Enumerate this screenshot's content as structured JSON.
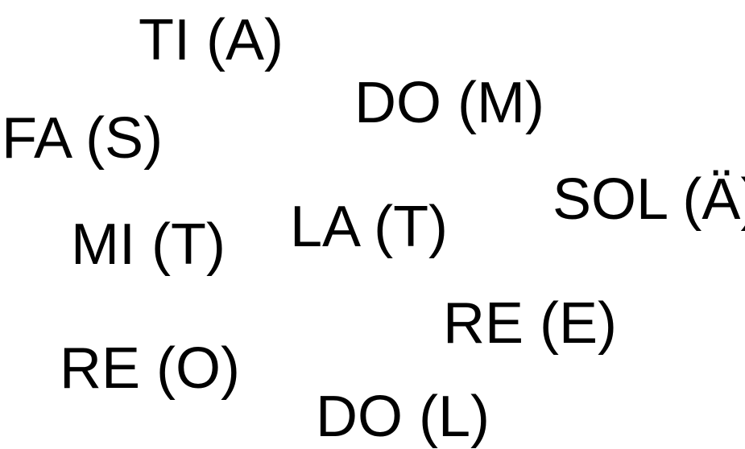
{
  "solfege_labels": [
    "TI (A)",
    "DO (M)",
    "FA (S)",
    "SOL (Ä)",
    "LA (T)",
    "MI (T)",
    "RE (E)",
    "RE (O)",
    "DO (L)"
  ],
  "colors": {
    "text": "#000000",
    "background": "#ffffff"
  }
}
